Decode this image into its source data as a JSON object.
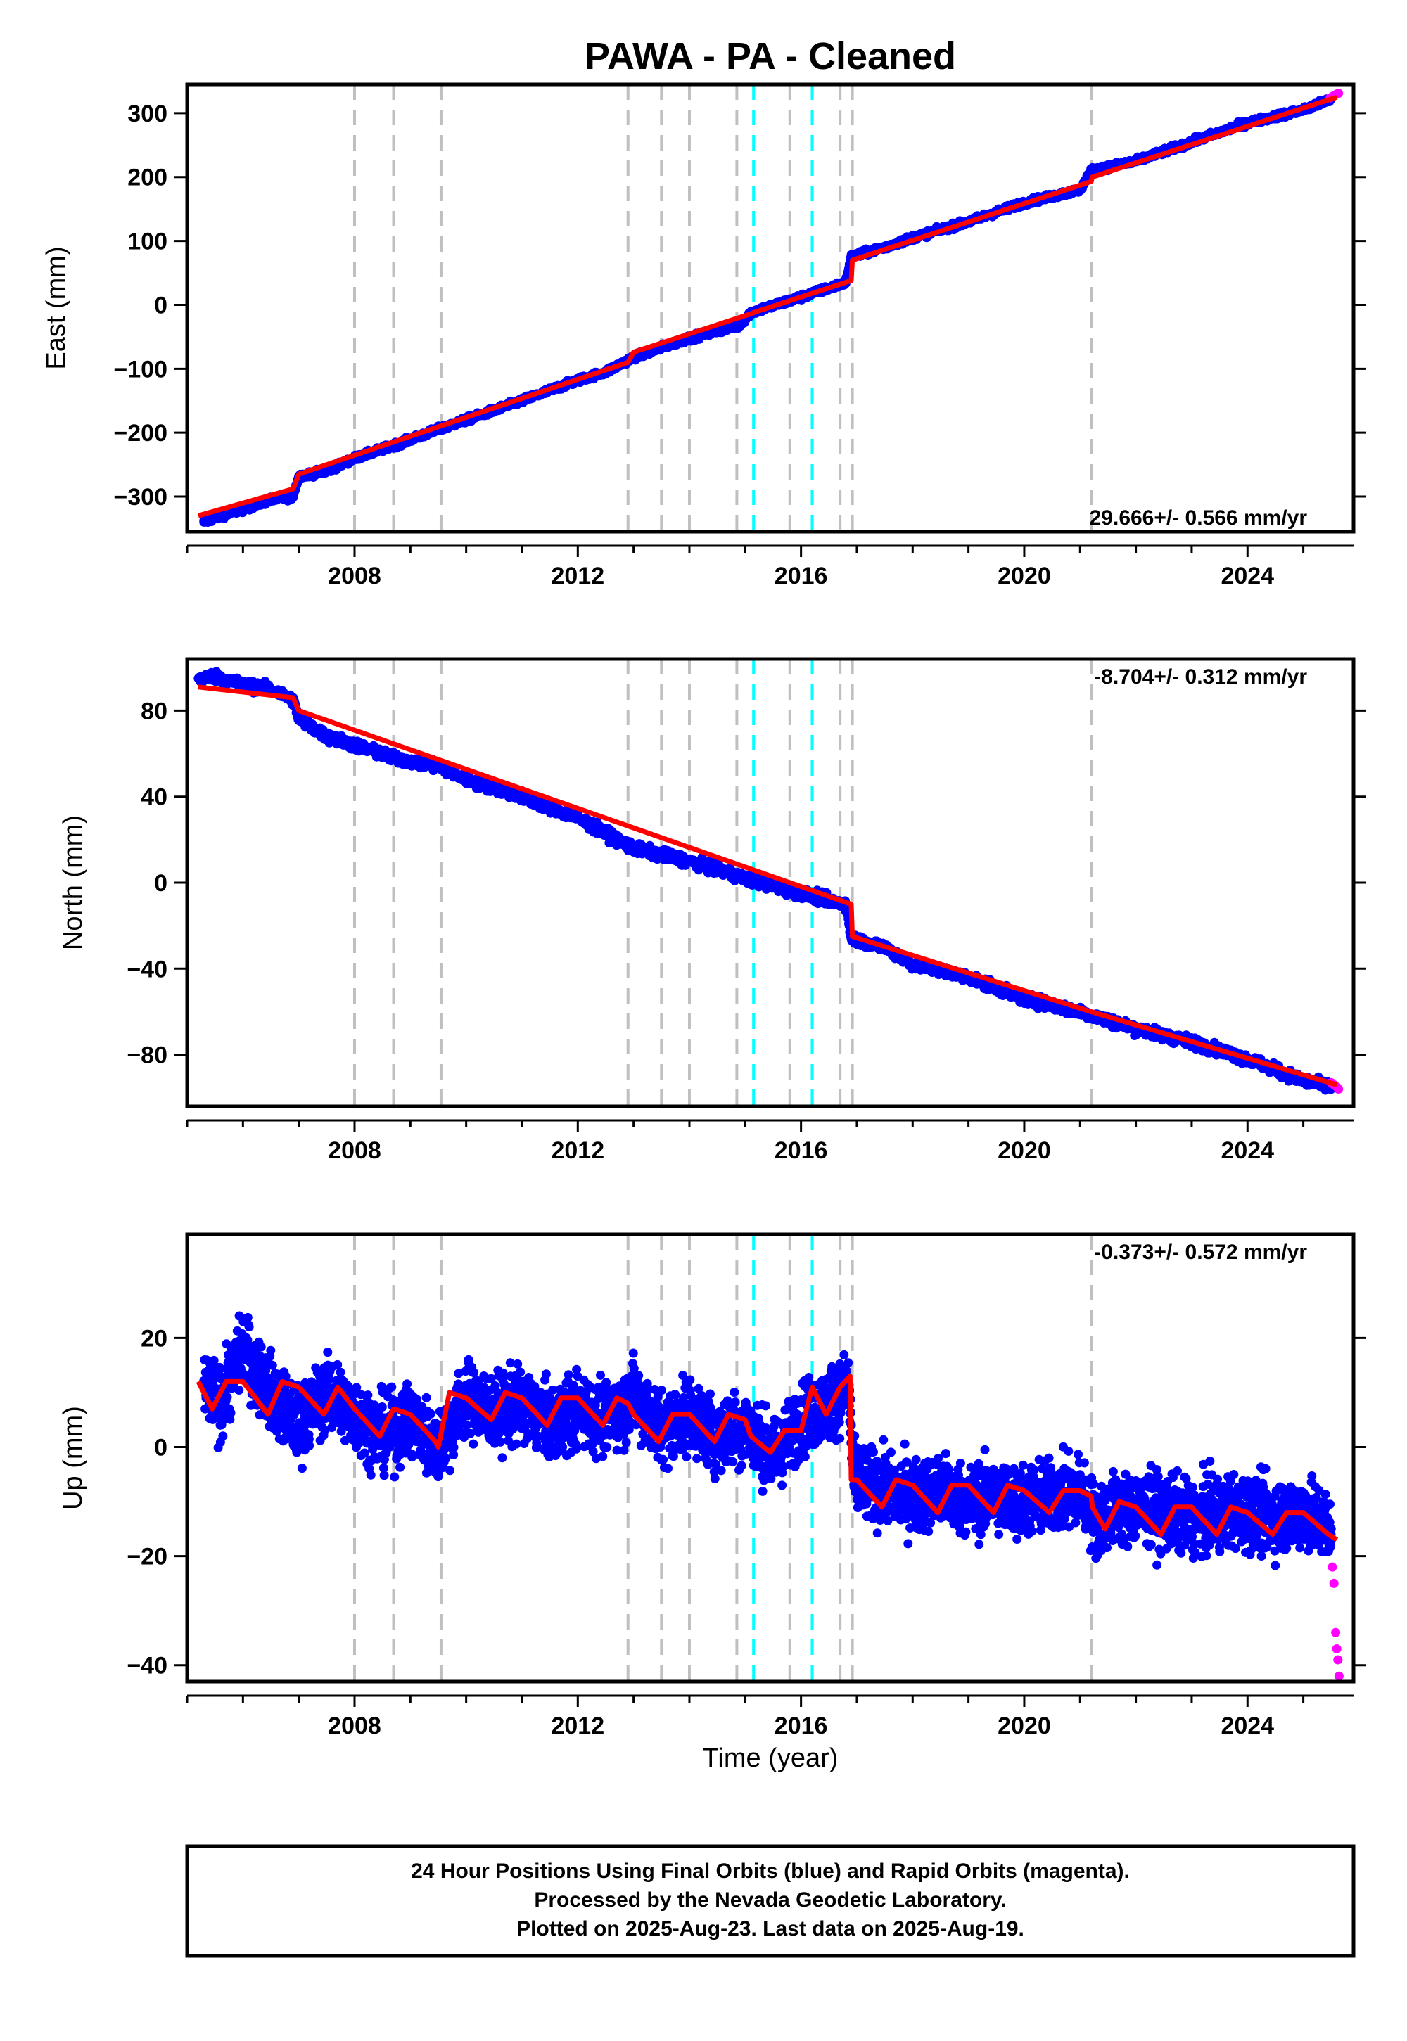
{
  "title": "PAWA  - PA - Cleaned",
  "xlabel": "Time (year)",
  "footer": [
    "24 Hour Positions Using Final Orbits (blue) and Rapid Orbits (magenta).",
    "Processed by the Nevada Geodetic Laboratory.",
    "Plotted on 2025-Aug-23. Last data on 2025-Aug-19."
  ],
  "colors": {
    "final_orbits": "#0000ff",
    "rapid_orbits": "#ff00ff",
    "model": "#ff0000",
    "equipment_change": "#c0c0c0",
    "earthquake": "#00ffff"
  },
  "chart_data": [
    {
      "type": "scatter",
      "ylabel": "East (mm)",
      "rate_label": "29.666+/- 0.566 mm/yr",
      "xlim": [
        2005.0,
        2025.9
      ],
      "ylim": [
        -355,
        345
      ],
      "xticks": [
        2008,
        2012,
        2016,
        2020,
        2024
      ],
      "yticks": [
        -300,
        -200,
        -100,
        0,
        100,
        200,
        300
      ],
      "ytick_labels": [
        "−300",
        "−200",
        "−100",
        "0",
        "100",
        "200",
        "300"
      ],
      "grid": false,
      "series": [
        {
          "role": "final_orbits",
          "x": [
            2005.3,
            2005.6,
            2006.0,
            2006.5,
            2006.9,
            2007.0,
            2007.5,
            2008.0,
            2008.7,
            2009.5,
            2010.0,
            2011.0,
            2012.0,
            2012.5,
            2013.0,
            2014.0,
            2014.9,
            2015.1,
            2016.0,
            2016.8,
            2016.9,
            2017.5,
            2018.0,
            2019.0,
            2020.0,
            2021.0,
            2021.2,
            2022.0,
            2023.0,
            2024.0,
            2025.0,
            2025.5
          ],
          "y": [
            -340,
            -330,
            -320,
            -305,
            -300,
            -268,
            -260,
            -240,
            -220,
            -195,
            -180,
            -150,
            -118,
            -105,
            -82,
            -52,
            -32,
            -12,
            12,
            35,
            75,
            90,
            105,
            130,
            160,
            180,
            210,
            225,
            255,
            285,
            305,
            322
          ]
        },
        {
          "role": "rapid_orbits",
          "x": [
            2025.48,
            2025.52,
            2025.56,
            2025.6,
            2025.63
          ],
          "y": [
            324,
            326,
            328,
            330,
            331
          ]
        },
        {
          "role": "model",
          "x": [
            2005.2,
            2006.9,
            2007.0,
            2012.9,
            2013.0,
            2015.1,
            2015.15,
            2016.9,
            2016.92,
            2021.2,
            2021.22,
            2025.6
          ],
          "y": [
            -330,
            -288,
            -265,
            -90,
            -74,
            -14,
            -12,
            38,
            70,
            193,
            200,
            325
          ]
        }
      ]
    },
    {
      "type": "scatter",
      "ylabel": "North (mm)",
      "rate_label": "-8.704+/- 0.312 mm/yr",
      "xlim": [
        2005.0,
        2025.9
      ],
      "ylim": [
        -104,
        104
      ],
      "xticks": [
        2008,
        2012,
        2016,
        2020,
        2024
      ],
      "yticks": [
        -80,
        -40,
        0,
        40,
        80
      ],
      "ytick_labels": [
        "−80",
        "−40",
        "0",
        "40",
        "80"
      ],
      "grid": false,
      "series": [
        {
          "role": "final_orbits",
          "x": [
            2005.2,
            2005.5,
            2006.0,
            2006.5,
            2006.9,
            2007.0,
            2007.5,
            2008.0,
            2008.7,
            2009.5,
            2010.0,
            2011.0,
            2012.0,
            2013.0,
            2014.0,
            2015.0,
            2016.0,
            2016.8,
            2016.9,
            2017.5,
            2018.0,
            2019.0,
            2020.0,
            2021.0,
            2022.0,
            2023.0,
            2024.0,
            2025.0,
            2025.5
          ],
          "y": [
            95,
            96,
            92,
            90,
            85,
            76,
            68,
            64,
            58,
            54,
            48,
            40,
            30,
            16,
            10,
            2,
            -5,
            -10,
            -26,
            -30,
            -38,
            -44,
            -54,
            -60,
            -68,
            -74,
            -82,
            -92,
            -95
          ]
        },
        {
          "role": "rapid_orbits",
          "x": [
            2025.5,
            2025.55,
            2025.6,
            2025.63
          ],
          "y": [
            -93,
            -94,
            -95,
            -96
          ]
        },
        {
          "role": "model",
          "x": [
            2005.2,
            2006.9,
            2007.0,
            2016.9,
            2016.92,
            2021.2,
            2025.6
          ],
          "y": [
            91,
            86,
            80,
            -10,
            -25,
            -60,
            -94
          ]
        }
      ]
    },
    {
      "type": "scatter",
      "ylabel": "Up (mm)",
      "rate_label": "-0.373+/- 0.572 mm/yr",
      "xlim": [
        2005.0,
        2025.9
      ],
      "ylim": [
        -43,
        39
      ],
      "xticks": [
        2008,
        2012,
        2016,
        2020,
        2024
      ],
      "yticks": [
        -40,
        -20,
        0,
        20
      ],
      "ytick_labels": [
        "−40",
        "−20",
        "0",
        "20"
      ],
      "grid": false,
      "series": [
        {
          "role": "final_orbits",
          "x": [
            2005.3,
            2005.6,
            2006.0,
            2006.5,
            2007.0,
            2007.5,
            2008.0,
            2008.5,
            2009.0,
            2009.5,
            2010.0,
            2010.5,
            2011.0,
            2011.5,
            2012.0,
            2012.5,
            2013.0,
            2013.5,
            2014.0,
            2014.5,
            2015.0,
            2015.5,
            2016.0,
            2016.5,
            2016.85,
            2016.95,
            2017.5,
            2018.0,
            2018.5,
            2019.0,
            2019.5,
            2020.0,
            2020.5,
            2021.0,
            2021.3,
            2021.5,
            2022.0,
            2022.5,
            2023.0,
            2023.5,
            2024.0,
            2024.5,
            2025.0,
            2025.5
          ],
          "y": [
            11,
            8,
            18,
            10,
            4,
            10,
            6,
            2,
            5,
            0,
            9,
            6,
            8,
            4,
            7,
            5,
            9,
            3,
            6,
            2,
            4,
            -2,
            5,
            8,
            11,
            -6,
            -8,
            -9,
            -8,
            -10,
            -9,
            -10,
            -9,
            -8,
            -14,
            -12,
            -11,
            -12,
            -13,
            -12,
            -12,
            -13,
            -12,
            -15
          ]
        },
        {
          "role": "rapid_orbits",
          "x": [
            2025.52,
            2025.55,
            2025.58,
            2025.6,
            2025.62,
            2025.64
          ],
          "y": [
            -22,
            -25,
            -34,
            -37,
            -39,
            -42
          ]
        },
        {
          "role": "model",
          "x": [
            2005.2,
            2005.45,
            2005.7,
            2006.0,
            2006.45,
            2006.7,
            2007.0,
            2007.45,
            2007.7,
            2008.0,
            2008.45,
            2008.7,
            2009.0,
            2009.45,
            2009.5,
            2009.7,
            2010.0,
            2010.45,
            2010.7,
            2011.0,
            2011.45,
            2011.7,
            2012.0,
            2012.45,
            2012.7,
            2012.9,
            2013.0,
            2013.45,
            2013.7,
            2014.0,
            2014.45,
            2014.7,
            2015.0,
            2015.1,
            2015.45,
            2015.7,
            2016.0,
            2016.2,
            2016.45,
            2016.7,
            2016.88,
            2016.9,
            2017.0,
            2017.45,
            2017.7,
            2018.0,
            2018.45,
            2018.7,
            2019.0,
            2019.45,
            2019.7,
            2020.0,
            2020.45,
            2020.7,
            2021.0,
            2021.2,
            2021.22,
            2021.45,
            2021.7,
            2022.0,
            2022.45,
            2022.7,
            2023.0,
            2023.45,
            2023.7,
            2024.0,
            2024.45,
            2024.7,
            2025.0,
            2025.45,
            2025.6
          ],
          "y": [
            12,
            7,
            12,
            12,
            6,
            12,
            11,
            6,
            11,
            7,
            2,
            7,
            6,
            1,
            0,
            10,
            9,
            5,
            10,
            9,
            4,
            9,
            9,
            4,
            9,
            8,
            6,
            1,
            6,
            6,
            1,
            6,
            5,
            2,
            -1,
            3,
            3,
            11,
            6,
            11,
            13,
            -6,
            -6,
            -11,
            -6,
            -7,
            -12,
            -7,
            -7,
            -12,
            -7,
            -8,
            -12,
            -8,
            -8,
            -9,
            -11,
            -15,
            -10,
            -11,
            -16,
            -11,
            -11,
            -16,
            -11,
            -12,
            -16,
            -12,
            -12,
            -16,
            -17
          ]
        }
      ]
    }
  ],
  "event_lines": {
    "equipment_change": [
      2008.0,
      2008.7,
      2009.55,
      2012.9,
      2013.5,
      2014.0,
      2014.85,
      2015.8,
      2016.7,
      2016.92,
      2021.2
    ],
    "earthquake": [
      2015.15,
      2016.2
    ]
  }
}
